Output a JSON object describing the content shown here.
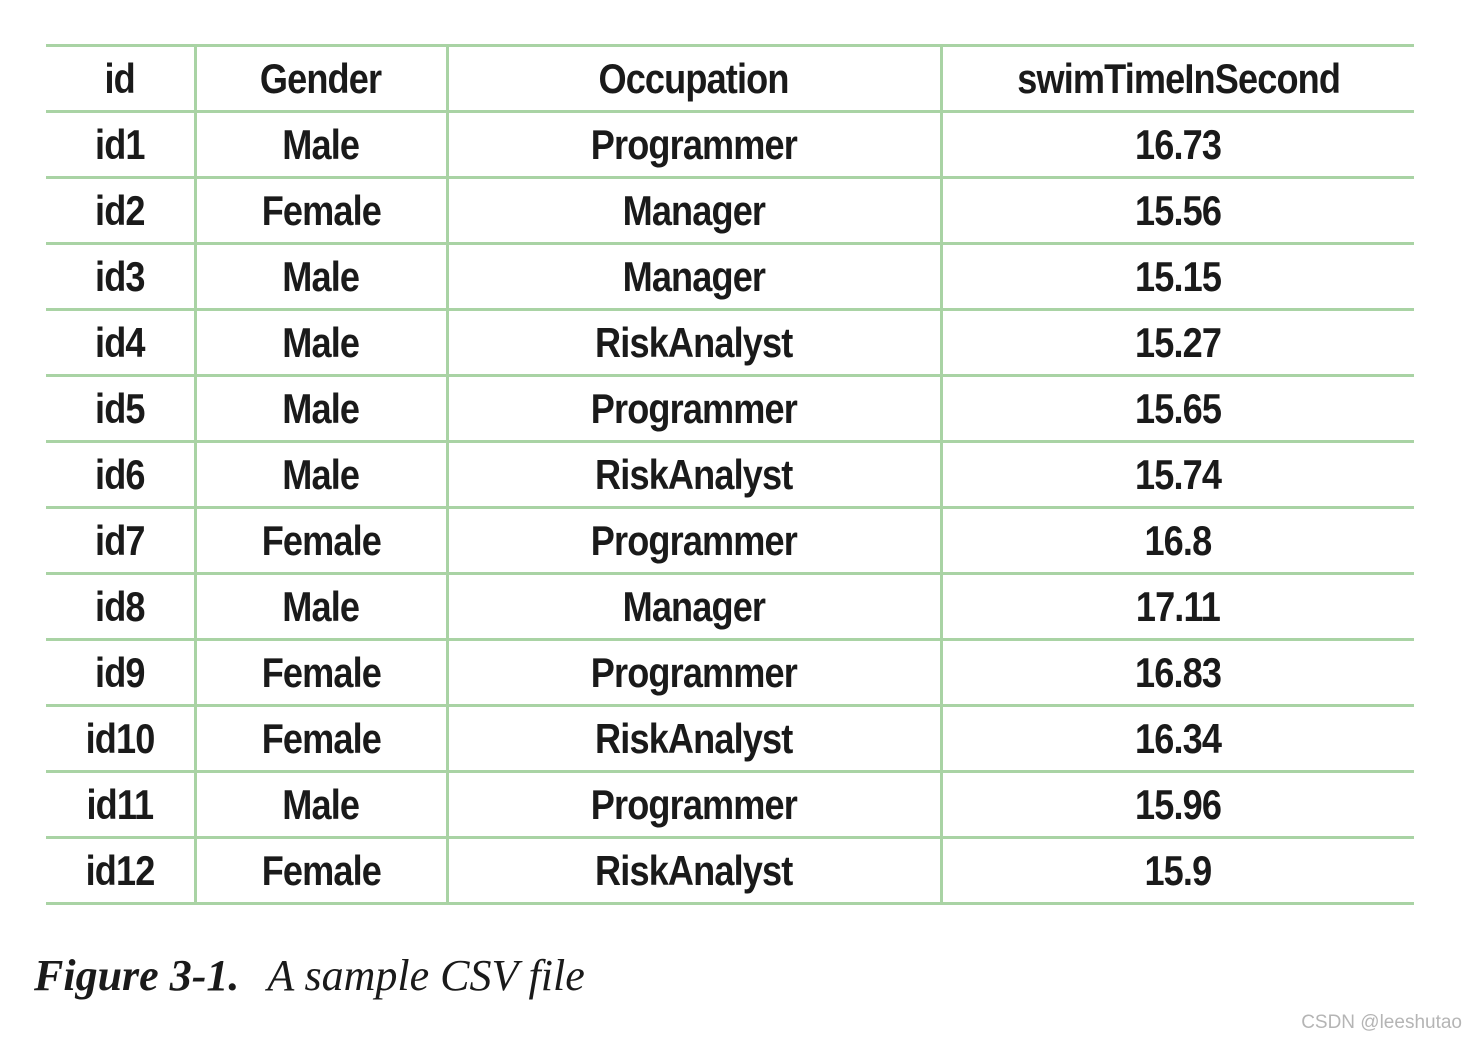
{
  "table": {
    "headers": [
      "id",
      "Gender",
      "Occupation",
      "swimTimeInSecond"
    ],
    "rows": [
      [
        "id1",
        "Male",
        "Programmer",
        "16.73"
      ],
      [
        "id2",
        "Female",
        "Manager",
        "15.56"
      ],
      [
        "id3",
        "Male",
        "Manager",
        "15.15"
      ],
      [
        "id4",
        "Male",
        "RiskAnalyst",
        "15.27"
      ],
      [
        "id5",
        "Male",
        "Programmer",
        "15.65"
      ],
      [
        "id6",
        "Male",
        "RiskAnalyst",
        "15.74"
      ],
      [
        "id7",
        "Female",
        "Programmer",
        "16.8"
      ],
      [
        "id8",
        "Male",
        "Manager",
        "17.11"
      ],
      [
        "id9",
        "Female",
        "Programmer",
        "16.83"
      ],
      [
        "id10",
        "Female",
        "RiskAnalyst",
        "16.34"
      ],
      [
        "id11",
        "Male",
        "Programmer",
        "15.96"
      ],
      [
        "id12",
        "Female",
        "RiskAnalyst",
        "15.9"
      ]
    ]
  },
  "caption": {
    "label": "Figure 3-1.",
    "text": "A sample CSV file"
  },
  "watermark": "CSDN @leeshutao",
  "colors": {
    "rule": "#a9d3a4",
    "text": "#1a1a1a"
  }
}
